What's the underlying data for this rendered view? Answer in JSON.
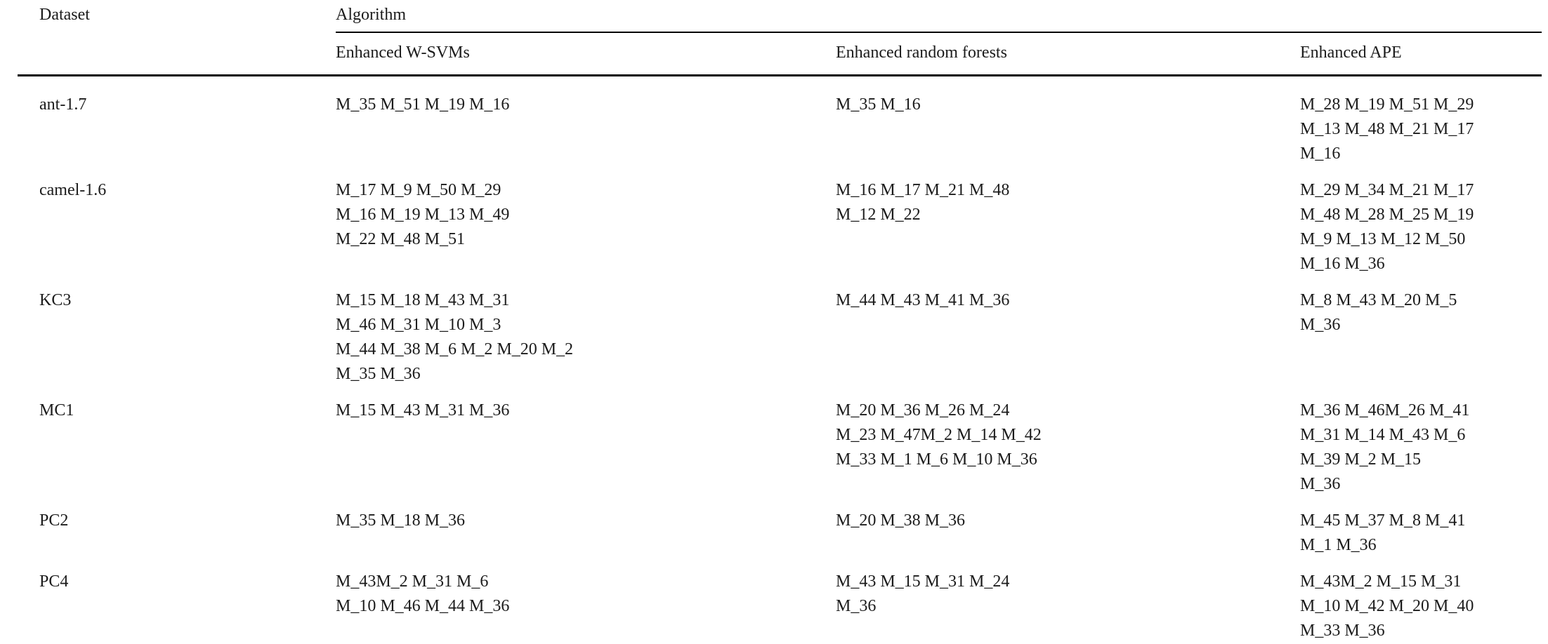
{
  "table": {
    "dataset_header": "Dataset",
    "algorithm_header": "Algorithm",
    "subheaders": [
      "Enhanced W-SVMs",
      "Enhanced random forests",
      "Enhanced APE"
    ],
    "rows": [
      {
        "dataset": "ant-1.7",
        "enhanced_wsvms": [
          "M_35 M_51 M_19 M_16"
        ],
        "enhanced_random_forests": [
          "M_35 M_16"
        ],
        "enhanced_ape": [
          "M_28 M_19 M_51 M_29",
          "M_13 M_48 M_21 M_17",
          "M_16"
        ]
      },
      {
        "dataset": "camel-1.6",
        "enhanced_wsvms": [
          "M_17 M_9 M_50 M_29",
          "M_16 M_19 M_13 M_49",
          "M_22 M_48 M_51"
        ],
        "enhanced_random_forests": [
          "M_16 M_17 M_21 M_48",
          "M_12 M_22"
        ],
        "enhanced_ape": [
          "M_29 M_34 M_21 M_17",
          "M_48 M_28 M_25 M_19",
          "M_9 M_13 M_12 M_50",
          "M_16 M_36"
        ]
      },
      {
        "dataset": "KC3",
        "enhanced_wsvms": [
          "M_15 M_18 M_43 M_31",
          "M_46 M_31 M_10 M_3",
          "M_44 M_38 M_6 M_2 M_20 M_2",
          "M_35 M_36"
        ],
        "enhanced_random_forests": [
          "M_44 M_43 M_41 M_36"
        ],
        "enhanced_ape": [
          "M_8 M_43 M_20 M_5",
          "M_36"
        ]
      },
      {
        "dataset": "MC1",
        "enhanced_wsvms": [
          "M_15 M_43 M_31 M_36"
        ],
        "enhanced_random_forests": [
          "M_20 M_36 M_26 M_24",
          "M_23 M_47M_2 M_14 M_42",
          "M_33 M_1 M_6 M_10 M_36"
        ],
        "enhanced_ape": [
          "M_36 M_46M_26 M_41",
          "M_31 M_14 M_43 M_6",
          "M_39 M_2 M_15",
          "M_36"
        ]
      },
      {
        "dataset": "PC2",
        "enhanced_wsvms": [
          "M_35 M_18 M_36"
        ],
        "enhanced_random_forests": [
          "M_20 M_38 M_36"
        ],
        "enhanced_ape": [
          "M_45 M_37 M_8 M_41",
          "M_1 M_36"
        ]
      },
      {
        "dataset": "PC4",
        "enhanced_wsvms": [
          "M_43M_2 M_31 M_6",
          "M_10 M_46 M_44 M_36"
        ],
        "enhanced_random_forests": [
          "M_43 M_15 M_31 M_24",
          "M_36"
        ],
        "enhanced_ape": [
          "M_43M_2 M_15 M_31",
          "M_10 M_42 M_20 M_40",
          "M_33 M_36"
        ]
      }
    ]
  },
  "colors": {
    "background": "#ffffff",
    "text": "#1b1b1b",
    "rule": "#000000"
  }
}
